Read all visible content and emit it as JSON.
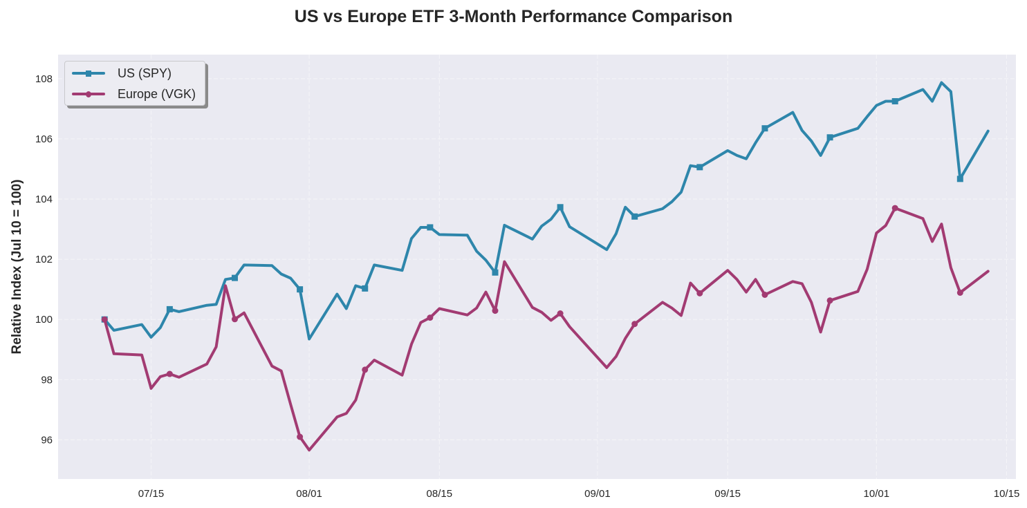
{
  "chart_data": {
    "type": "line",
    "title": "US vs Europe ETF 3-Month Performance Comparison",
    "xlabel": "",
    "ylabel": "Relative Index (Jul 10 = 100)",
    "ylim": [
      94.7,
      108.8
    ],
    "yticks": [
      96,
      98,
      100,
      102,
      104,
      106,
      108
    ],
    "xlim_dates": [
      "2025-07-05",
      "2025-10-16"
    ],
    "xticks": [
      {
        "date": "2025-07-15",
        "label": "07/15"
      },
      {
        "date": "2025-08-01",
        "label": "08/01"
      },
      {
        "date": "2025-08-15",
        "label": "08/15"
      },
      {
        "date": "2025-09-01",
        "label": "09/01"
      },
      {
        "date": "2025-09-15",
        "label": "09/15"
      },
      {
        "date": "2025-10-01",
        "label": "10/01"
      },
      {
        "date": "2025-10-15",
        "label": "10/15"
      }
    ],
    "grid": true,
    "legend_position": "top-left",
    "marker_every": 5,
    "x": [
      "2025-07-10",
      "2025-07-11",
      "2025-07-14",
      "2025-07-15",
      "2025-07-16",
      "2025-07-17",
      "2025-07-18",
      "2025-07-21",
      "2025-07-22",
      "2025-07-23",
      "2025-07-24",
      "2025-07-25",
      "2025-07-28",
      "2025-07-29",
      "2025-07-30",
      "2025-07-31",
      "2025-08-01",
      "2025-08-04",
      "2025-08-05",
      "2025-08-06",
      "2025-08-07",
      "2025-08-08",
      "2025-08-11",
      "2025-08-12",
      "2025-08-13",
      "2025-08-14",
      "2025-08-15",
      "2025-08-18",
      "2025-08-19",
      "2025-08-20",
      "2025-08-21",
      "2025-08-22",
      "2025-08-25",
      "2025-08-26",
      "2025-08-27",
      "2025-08-28",
      "2025-08-29",
      "2025-09-02",
      "2025-09-03",
      "2025-09-04",
      "2025-09-05",
      "2025-09-08",
      "2025-09-09",
      "2025-09-10",
      "2025-09-11",
      "2025-09-12",
      "2025-09-15",
      "2025-09-16",
      "2025-09-17",
      "2025-09-18",
      "2025-09-19",
      "2025-09-22",
      "2025-09-23",
      "2025-09-24",
      "2025-09-25",
      "2025-09-26",
      "2025-09-29",
      "2025-09-30",
      "2025-10-01",
      "2025-10-02",
      "2025-10-03",
      "2025-10-06",
      "2025-10-07",
      "2025-10-08",
      "2025-10-09",
      "2025-10-10",
      "2025-10-13"
    ],
    "series": [
      {
        "name": "US (SPY)",
        "color": "#2e86ab",
        "marker": "square",
        "values": [
          100.0,
          99.64,
          99.83,
          99.41,
          99.73,
          100.34,
          100.26,
          100.47,
          100.5,
          101.33,
          101.38,
          101.81,
          101.79,
          101.51,
          101.37,
          101.0,
          99.35,
          100.84,
          100.36,
          101.12,
          101.03,
          101.81,
          101.63,
          102.69,
          103.06,
          103.06,
          102.82,
          102.8,
          102.27,
          101.97,
          101.56,
          103.13,
          102.67,
          103.1,
          103.33,
          103.73,
          103.08,
          102.32,
          102.85,
          103.73,
          103.42,
          103.68,
          103.91,
          104.23,
          105.11,
          105.06,
          105.61,
          105.45,
          105.34,
          105.87,
          106.35,
          106.88,
          106.28,
          105.93,
          105.45,
          106.05,
          106.35,
          106.74,
          107.11,
          107.25,
          107.25,
          107.64,
          107.25,
          107.87,
          107.57,
          104.67,
          106.26
        ]
      },
      {
        "name": "Europe (VGK)",
        "color": "#a23b72",
        "marker": "circle",
        "values": [
          100.0,
          98.86,
          98.82,
          97.71,
          98.1,
          98.19,
          98.08,
          98.52,
          99.09,
          101.12,
          100.01,
          100.22,
          98.45,
          98.29,
          97.18,
          96.1,
          95.66,
          96.76,
          96.88,
          97.32,
          98.33,
          98.65,
          98.15,
          99.18,
          99.9,
          100.06,
          100.36,
          100.15,
          100.38,
          100.91,
          100.29,
          101.92,
          100.4,
          100.24,
          99.97,
          100.2,
          99.76,
          98.4,
          98.77,
          99.37,
          99.85,
          100.57,
          100.38,
          100.13,
          101.21,
          100.87,
          101.63,
          101.33,
          100.91,
          101.33,
          100.82,
          101.26,
          101.19,
          100.57,
          99.58,
          100.63,
          100.93,
          101.67,
          102.87,
          103.12,
          103.7,
          103.35,
          102.59,
          103.17,
          101.72,
          100.89,
          101.6
        ]
      }
    ]
  },
  "colors": {
    "plot_background": "#eaeaf2",
    "grid": "#f5f5f8",
    "text": "#262626"
  }
}
